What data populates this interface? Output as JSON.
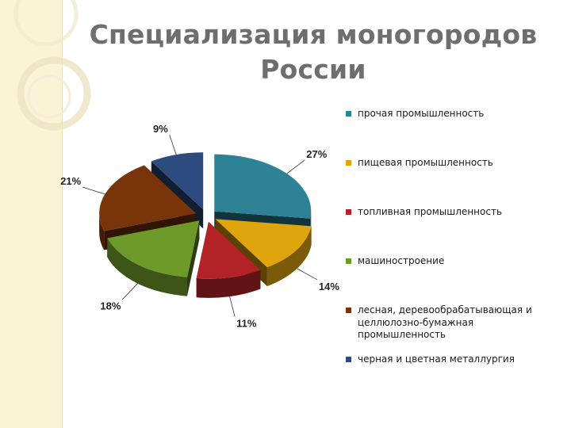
{
  "slide": {
    "title_line1": "Специализация моногородов",
    "title_line2": "России"
  },
  "chart_data": {
    "type": "pie",
    "title": "",
    "series": [
      {
        "values": [
          27,
          14,
          11,
          18,
          21,
          9
        ],
        "labels": [
          "27%",
          "14%",
          "11%",
          "18%",
          "21%",
          "9%"
        ]
      }
    ],
    "categories": [
      "прочая промышленность",
      "пищевая промышленность",
      "топливная промышленность",
      "машиностроение",
      "лесная, деревообрабатывающая и целлюлозно-бумажная промышленность",
      "черная и цветная металлургия"
    ],
    "colors": [
      "#2e8296",
      "#e0a50c",
      "#b32227",
      "#6e9a2a",
      "#7a3409",
      "#2d4b7e"
    ],
    "legend_position": "right",
    "exploded": true,
    "three_d": true
  }
}
